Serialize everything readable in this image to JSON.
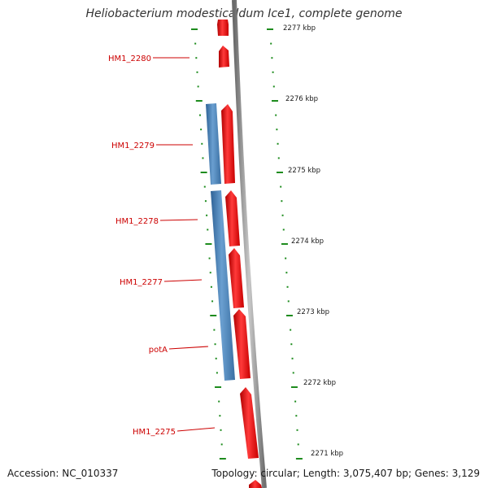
{
  "title": "Heliobacterium modesticaldum Ice1, complete genome",
  "footer": {
    "accession": "Accession: NC_010337",
    "summary": "Topology: circular; Length: 3,075,407 bp; Genes: 3,129"
  },
  "scale": {
    "unit": "kbp",
    "labels": [
      "2277 kbp",
      "2276 kbp",
      "2275 kbp",
      "2274 kbp",
      "2273 kbp",
      "2272 kbp",
      "2271 kbp"
    ]
  },
  "genes": [
    {
      "name": "HM1_2280",
      "strand": "forward"
    },
    {
      "name": "HM1_2279",
      "strand": "forward"
    },
    {
      "name": "HM1_2278",
      "strand": "forward"
    },
    {
      "name": "HM1_2277",
      "strand": "forward"
    },
    {
      "name": "potA",
      "strand": "forward"
    },
    {
      "name": "HM1_2275",
      "strand": "forward"
    }
  ],
  "colors": {
    "forward_gene": "#ff0000",
    "cds_feature": "#4a82b8",
    "backbone": "#8c8c8c",
    "tick": "#1e8c1e",
    "gene_label": "#cc0000",
    "text": "#1a1a1a"
  }
}
